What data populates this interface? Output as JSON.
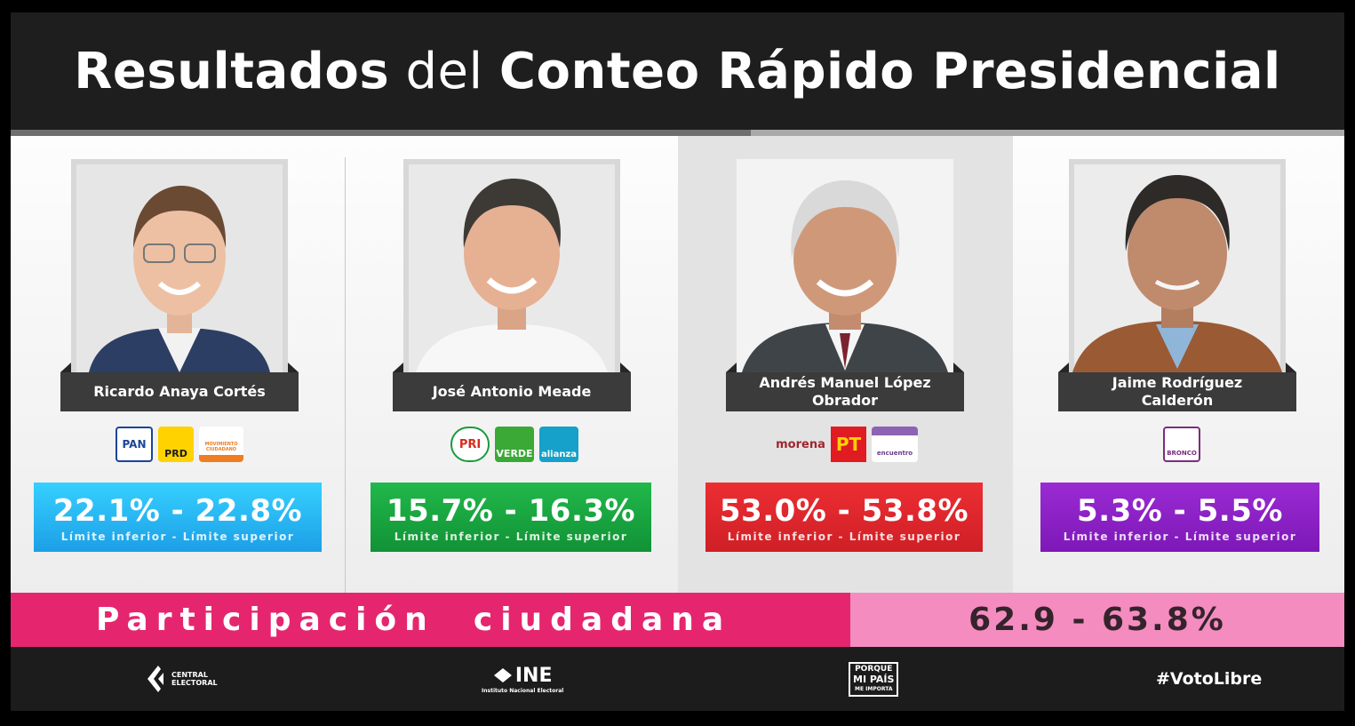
{
  "header": {
    "title_part1": "Resultados",
    "title_part2": "del",
    "title_part3": "Conteo Rápido Presidencial"
  },
  "progress_fraction": 0.555,
  "candidates": [
    {
      "name": "Ricardo Anaya Cortés",
      "range": "22.1% - 22.8%",
      "sublabel": "Límite inferior - Límite superior",
      "color": "#1fb6ee",
      "parties": [
        "PAN",
        "PRD",
        "MOVIMIENTO CIUDADANO"
      ],
      "highlighted": false
    },
    {
      "name": "José Antonio Meade",
      "range": "15.7% - 16.3%",
      "sublabel": "Límite inferior - Límite superior",
      "color": "#17a43f",
      "parties": [
        "PRI",
        "VERDE",
        "alianza"
      ],
      "highlighted": false
    },
    {
      "name": "Andrés Manuel López Obrador",
      "range": "53.0% - 53.8%",
      "sublabel": "Límite inferior - Límite superior",
      "color": "#e1262d",
      "parties": [
        "morena",
        "PT",
        "encuentro"
      ],
      "highlighted": true
    },
    {
      "name": "Jaime Rodríguez Calderón",
      "range": "5.3% - 5.5%",
      "sublabel": "Límite inferior - Límite superior",
      "color": "#8b1fc6",
      "parties": [
        "BRONCO"
      ],
      "highlighted": false
    }
  ],
  "participation": {
    "label": "Participación  ciudadana",
    "value": "62.9 - 63.8%"
  },
  "footer": {
    "central_electoral": "CENTRAL ELECTORAL",
    "ine": "INE",
    "ine_sub": "Instituto Nacional Electoral",
    "porque_line1": "PORQUE",
    "porque_line2": "MI PAÍS",
    "porque_line3": "ME IMPORTA",
    "hashtag": "#VotoLibre"
  }
}
